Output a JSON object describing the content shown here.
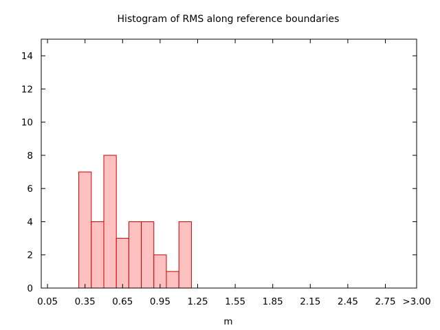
{
  "chart_data": {
    "type": "bar",
    "title": "Histogram of RMS along reference boundaries",
    "xlabel": "m",
    "ylabel": "",
    "bin_width": 0.1,
    "x_tick_labels": [
      "0.05",
      "0.35",
      "0.65",
      "0.95",
      "1.25",
      "1.55",
      "1.85",
      "2.15",
      "2.45",
      "2.75",
      ">3.00"
    ],
    "x_tick_values": [
      0.05,
      0.35,
      0.65,
      0.95,
      1.25,
      1.55,
      1.85,
      2.15,
      2.45,
      2.75,
      3.0
    ],
    "y_ticks": [
      0,
      2,
      4,
      6,
      8,
      10,
      12,
      14
    ],
    "xlim": [
      0.0,
      3.0
    ],
    "ylim": [
      0,
      15
    ],
    "bins": [
      {
        "x": 0.35,
        "value": 7
      },
      {
        "x": 0.45,
        "value": 4
      },
      {
        "x": 0.55,
        "value": 8
      },
      {
        "x": 0.65,
        "value": 3
      },
      {
        "x": 0.75,
        "value": 4
      },
      {
        "x": 0.85,
        "value": 4
      },
      {
        "x": 0.95,
        "value": 2
      },
      {
        "x": 1.05,
        "value": 1
      },
      {
        "x": 1.15,
        "value": 4
      }
    ],
    "bar_fill": "#ffc0c0",
    "bar_stroke": "#cc0000",
    "grid": false
  }
}
